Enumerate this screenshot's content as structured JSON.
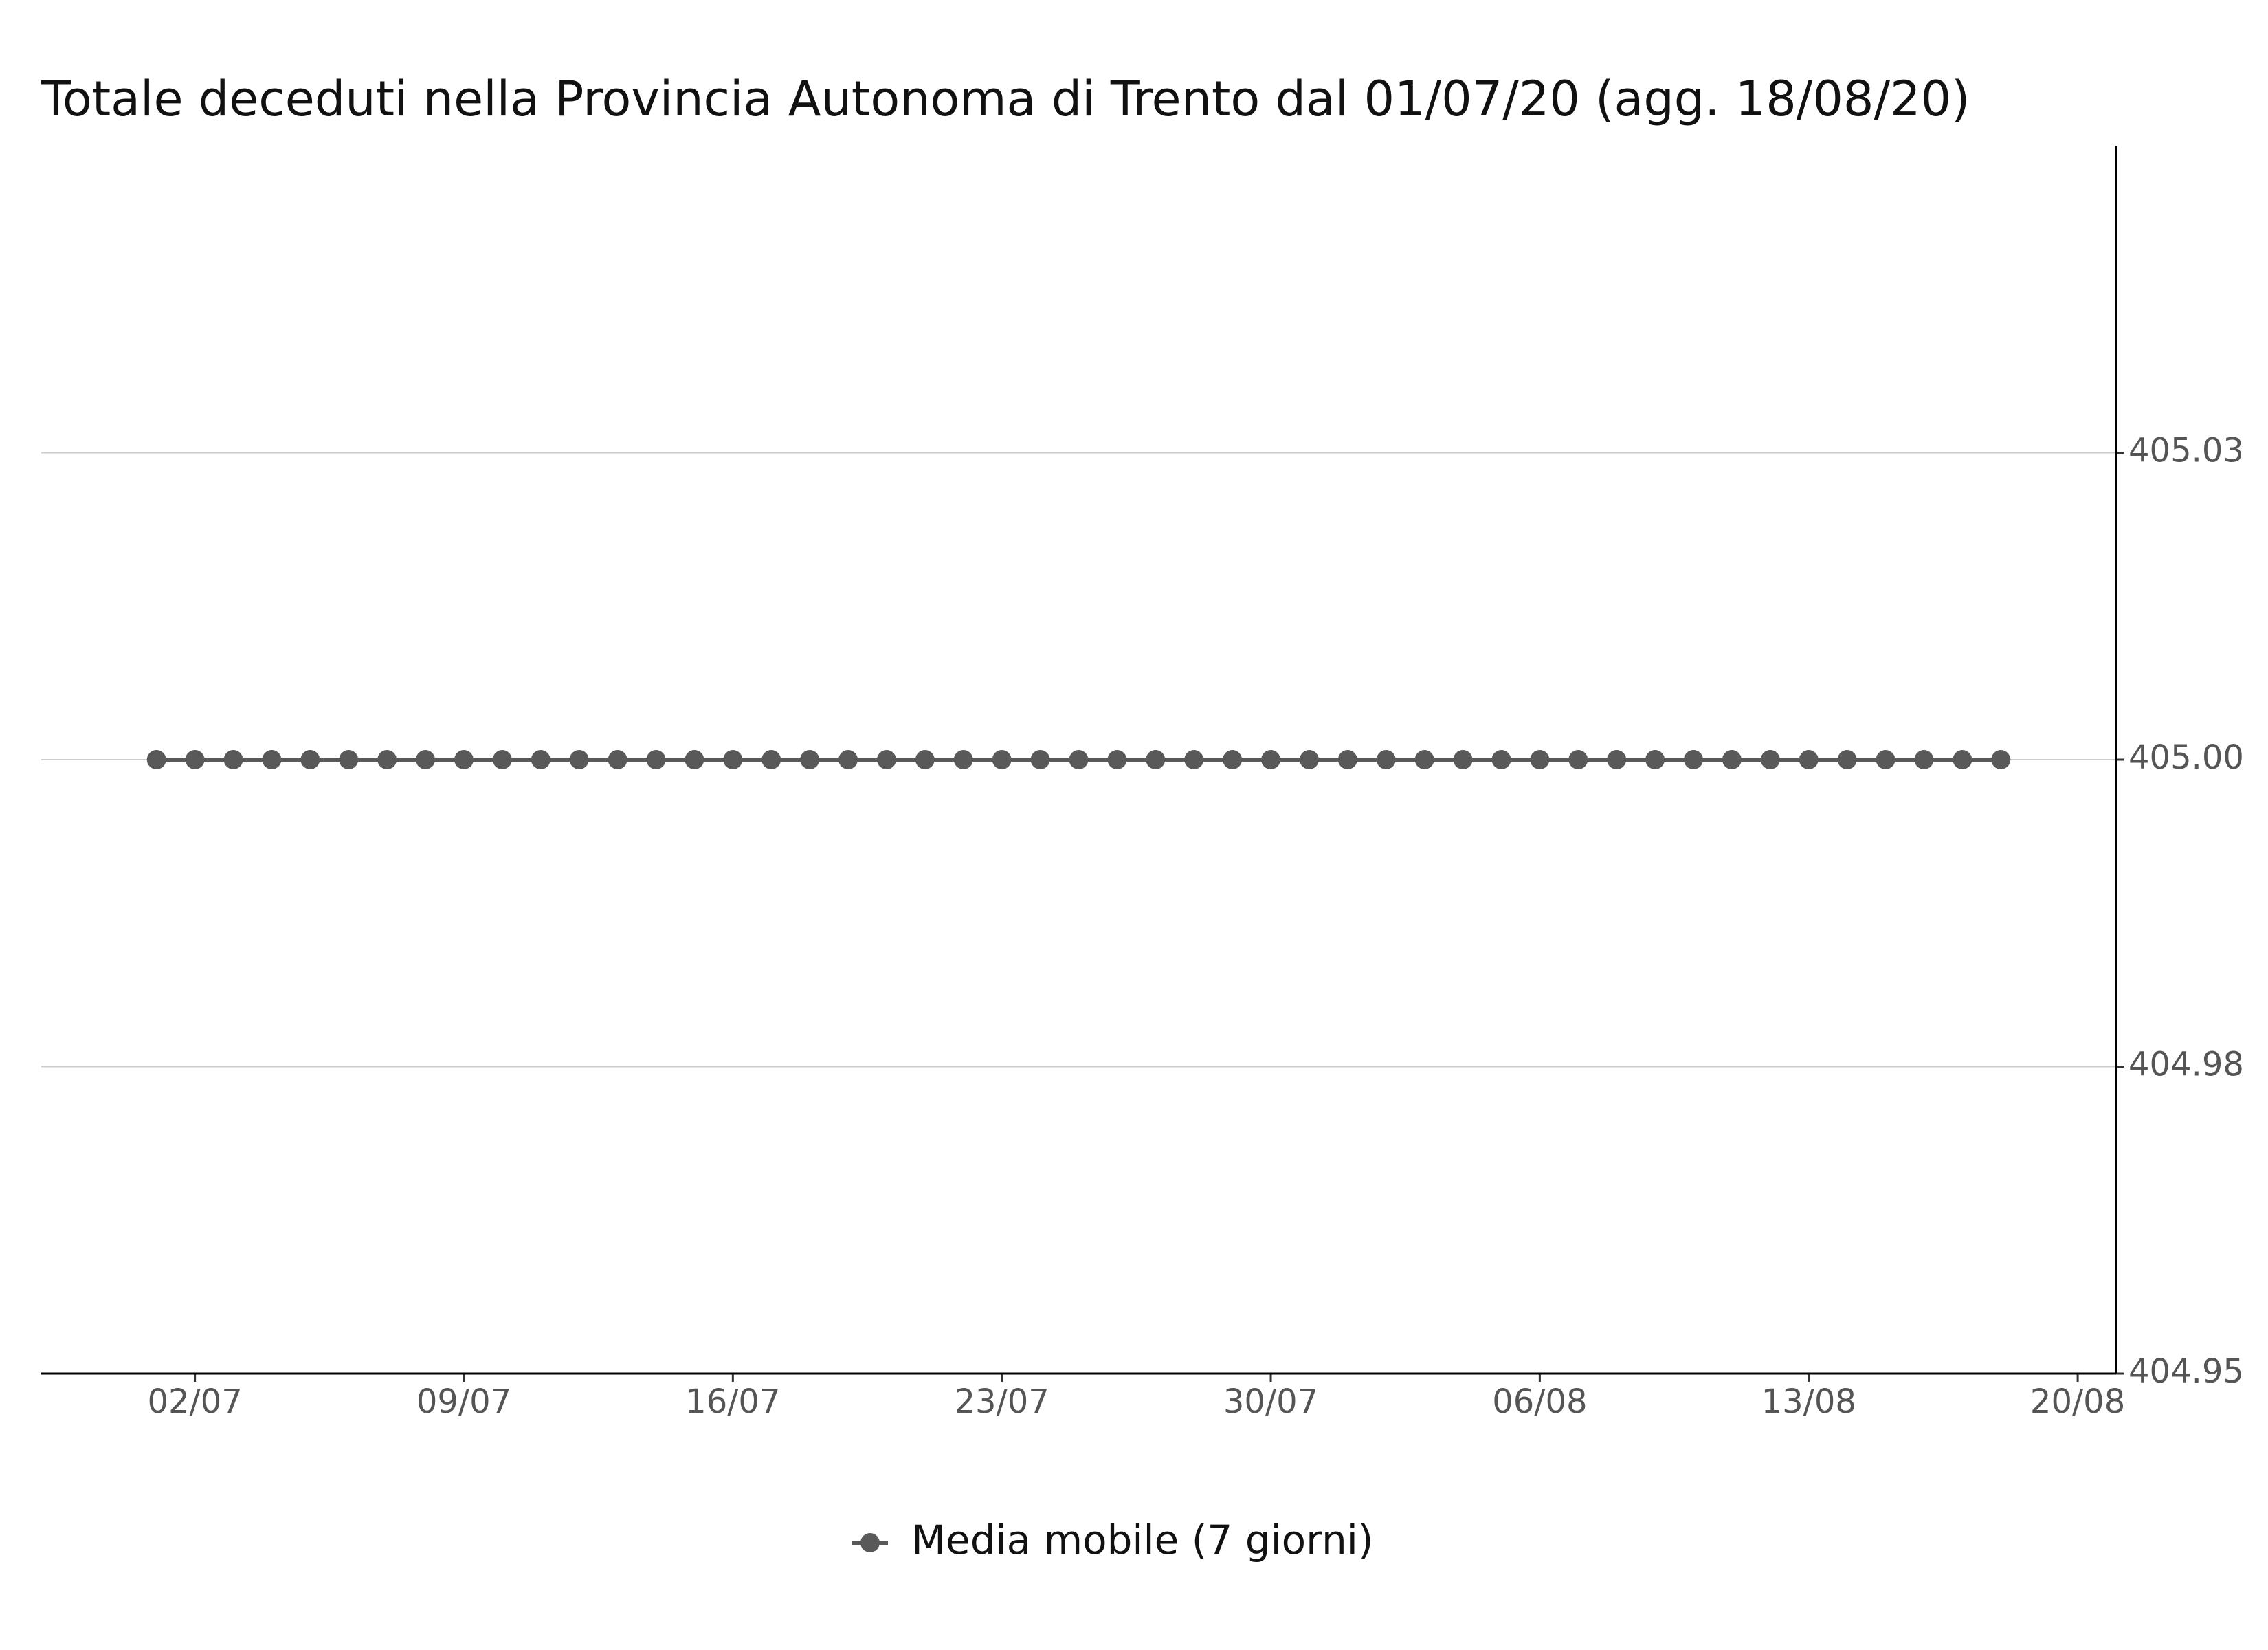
{
  "chart_data": {
    "type": "line",
    "title": "Totale deceduti nella Provincia Autonoma di Trento dal 01/07/20 (agg. 18/08/20)",
    "x": [
      "01/07",
      "02/07",
      "03/07",
      "04/07",
      "05/07",
      "06/07",
      "07/07",
      "08/07",
      "09/07",
      "10/07",
      "11/07",
      "12/07",
      "13/07",
      "14/07",
      "15/07",
      "16/07",
      "17/07",
      "18/07",
      "19/07",
      "20/07",
      "21/07",
      "22/07",
      "23/07",
      "24/07",
      "25/07",
      "26/07",
      "27/07",
      "28/07",
      "29/07",
      "30/07",
      "31/07",
      "01/08",
      "02/08",
      "03/08",
      "04/08",
      "05/08",
      "06/08",
      "07/08",
      "08/08",
      "09/08",
      "10/08",
      "11/08",
      "12/08",
      "13/08",
      "14/08",
      "15/08",
      "16/08",
      "17/08",
      "18/08"
    ],
    "series": [
      {
        "name": "Media mobile (7 giorni)",
        "color": "#595959",
        "values": [
          405,
          405,
          405,
          405,
          405,
          405,
          405,
          405,
          405,
          405,
          405,
          405,
          405,
          405,
          405,
          405,
          405,
          405,
          405,
          405,
          405,
          405,
          405,
          405,
          405,
          405,
          405,
          405,
          405,
          405,
          405,
          405,
          405,
          405,
          405,
          405,
          405,
          405,
          405,
          405,
          405,
          405,
          405,
          405,
          405,
          405,
          405,
          405,
          405
        ]
      }
    ],
    "xlim": [
      "28/06",
      "21/08"
    ],
    "xticks": [
      "02/07",
      "09/07",
      "16/07",
      "23/07",
      "30/07",
      "06/08",
      "13/08",
      "20/08"
    ],
    "ylim": [
      404.95,
      405.05
    ],
    "yticks": [
      {
        "value": 404.95,
        "label": "404.95"
      },
      {
        "value": 404.975,
        "label": "404.98"
      },
      {
        "value": 405,
        "label": "405.00"
      },
      {
        "value": 405.025,
        "label": "405.03"
      }
    ],
    "y_axis_side": "right",
    "grid": true,
    "legend": "bottom"
  }
}
